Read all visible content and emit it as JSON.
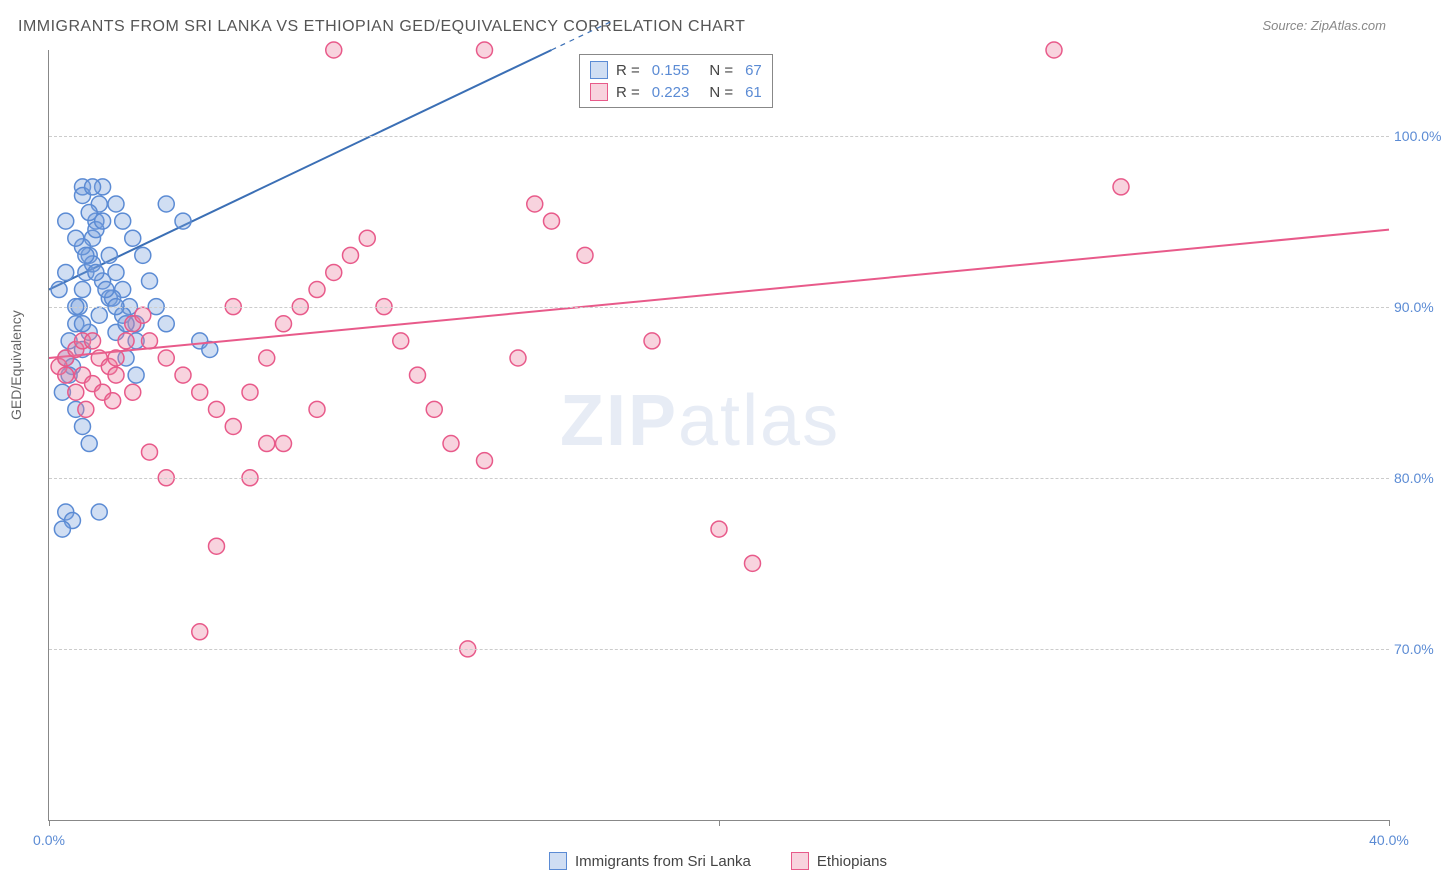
{
  "title": "IMMIGRANTS FROM SRI LANKA VS ETHIOPIAN GED/EQUIVALENCY CORRELATION CHART",
  "source_prefix": "Source: ",
  "source": "ZipAtlas.com",
  "ylabel": "GED/Equivalency",
  "watermark_bold": "ZIP",
  "watermark_light": "atlas",
  "chart": {
    "type": "scatter",
    "xlim": [
      0,
      40
    ],
    "ylim": [
      60,
      105
    ],
    "x_ticks": [
      0,
      20,
      40
    ],
    "x_tick_labels": [
      "0.0%",
      "",
      "40.0%"
    ],
    "x_tick_label_show": [
      true,
      false,
      true
    ],
    "y_ticks": [
      70,
      80,
      90,
      100
    ],
    "y_tick_labels": [
      "70.0%",
      "80.0%",
      "90.0%",
      "100.0%"
    ],
    "background_color": "#ffffff",
    "grid_color": "#cccccc",
    "axis_color": "#888888",
    "marker_radius": 8,
    "marker_stroke_width": 1.5,
    "series": [
      {
        "name": "Immigrants from Sri Lanka",
        "fill": "rgba(120,160,220,0.35)",
        "stroke": "#5b8bd4",
        "R": "0.155",
        "N": "67",
        "trend": {
          "x1": 0,
          "y1": 91,
          "x2": 15,
          "y2": 105,
          "dash_extend": true,
          "color": "#3b6fb5",
          "width": 2
        },
        "points": [
          [
            0.6,
            88
          ],
          [
            0.8,
            89
          ],
          [
            0.9,
            90
          ],
          [
            1.0,
            91
          ],
          [
            1.1,
            92
          ],
          [
            1.2,
            93
          ],
          [
            1.3,
            94
          ],
          [
            1.4,
            95
          ],
          [
            1.5,
            96
          ],
          [
            1.6,
            97
          ],
          [
            1.0,
            97
          ],
          [
            1.2,
            95.5
          ],
          [
            1.4,
            94.5
          ],
          [
            1.8,
            93
          ],
          [
            2.0,
            92
          ],
          [
            2.2,
            91
          ],
          [
            2.4,
            90
          ],
          [
            2.6,
            89
          ],
          [
            0.5,
            87
          ],
          [
            0.7,
            86.5
          ],
          [
            1.0,
            87.5
          ],
          [
            1.2,
            88.5
          ],
          [
            1.5,
            89.5
          ],
          [
            1.8,
            90.5
          ],
          [
            2.0,
            96
          ],
          [
            2.2,
            95
          ],
          [
            2.5,
            94
          ],
          [
            2.8,
            93
          ],
          [
            3.0,
            91.5
          ],
          [
            3.2,
            90
          ],
          [
            3.5,
            89
          ],
          [
            0.4,
            85
          ],
          [
            0.6,
            86
          ],
          [
            0.8,
            84
          ],
          [
            1.0,
            83
          ],
          [
            1.2,
            82
          ],
          [
            0.5,
            78
          ],
          [
            0.7,
            77.5
          ],
          [
            0.4,
            77
          ],
          [
            1.5,
            78
          ],
          [
            3.5,
            96
          ],
          [
            4.0,
            95
          ],
          [
            4.5,
            88
          ],
          [
            4.8,
            87.5
          ],
          [
            2.0,
            88.5
          ],
          [
            2.3,
            87
          ],
          [
            2.6,
            86
          ],
          [
            1.0,
            96.5
          ],
          [
            1.3,
            97
          ],
          [
            1.6,
            95
          ],
          [
            1.0,
            93.5
          ],
          [
            1.3,
            92.5
          ],
          [
            1.6,
            91.5
          ],
          [
            1.9,
            90.5
          ],
          [
            2.2,
            89.5
          ],
          [
            0.5,
            95
          ],
          [
            0.8,
            94
          ],
          [
            1.1,
            93
          ],
          [
            1.4,
            92
          ],
          [
            1.7,
            91
          ],
          [
            2.0,
            90
          ],
          [
            2.3,
            89
          ],
          [
            2.6,
            88
          ],
          [
            0.3,
            91
          ],
          [
            0.5,
            92
          ],
          [
            0.8,
            90
          ],
          [
            1.0,
            89
          ]
        ]
      },
      {
        "name": "Ethiopians",
        "fill": "rgba(235,130,160,0.35)",
        "stroke": "#e85a8a",
        "R": "0.223",
        "N": "61",
        "trend": {
          "x1": 0,
          "y1": 87,
          "x2": 40,
          "y2": 94.5,
          "dash_extend": false,
          "color": "#e85a8a",
          "width": 2
        },
        "points": [
          [
            0.3,
            86.5
          ],
          [
            0.5,
            87
          ],
          [
            0.8,
            87.5
          ],
          [
            1.0,
            88
          ],
          [
            1.3,
            88
          ],
          [
            1.5,
            87
          ],
          [
            1.8,
            86.5
          ],
          [
            2.0,
            87
          ],
          [
            2.3,
            88
          ],
          [
            2.5,
            89
          ],
          [
            2.8,
            89.5
          ],
          [
            3.0,
            88
          ],
          [
            3.5,
            87
          ],
          [
            4.0,
            86
          ],
          [
            4.5,
            85
          ],
          [
            5.0,
            84
          ],
          [
            5.5,
            83
          ],
          [
            6.0,
            85
          ],
          [
            6.5,
            87
          ],
          [
            7.0,
            89
          ],
          [
            7.5,
            90
          ],
          [
            8.0,
            91
          ],
          [
            8.5,
            92
          ],
          [
            9.0,
            93
          ],
          [
            9.5,
            94
          ],
          [
            10.0,
            90
          ],
          [
            10.5,
            88
          ],
          [
            11.0,
            86
          ],
          [
            11.5,
            84
          ],
          [
            12.0,
            82
          ],
          [
            13.0,
            81
          ],
          [
            14.0,
            87
          ],
          [
            15.0,
            95
          ],
          [
            16.0,
            93
          ],
          [
            18.0,
            88
          ],
          [
            20.0,
            77
          ],
          [
            21.0,
            75
          ],
          [
            12.5,
            70
          ],
          [
            4.5,
            71
          ],
          [
            5.0,
            76
          ],
          [
            6.0,
            80
          ],
          [
            7.0,
            82
          ],
          [
            8.0,
            84
          ],
          [
            8.5,
            105
          ],
          [
            30.0,
            105
          ],
          [
            32.0,
            97
          ],
          [
            13.0,
            105
          ],
          [
            14.5,
            96
          ],
          [
            3.5,
            80
          ],
          [
            3.0,
            81.5
          ],
          [
            2.0,
            86
          ],
          [
            2.5,
            85
          ],
          [
            1.0,
            86
          ],
          [
            1.3,
            85.5
          ],
          [
            1.6,
            85
          ],
          [
            1.9,
            84.5
          ],
          [
            0.5,
            86
          ],
          [
            0.8,
            85
          ],
          [
            1.1,
            84
          ],
          [
            5.5,
            90
          ],
          [
            6.5,
            82
          ]
        ]
      }
    ]
  },
  "legend_bottom": [
    {
      "label": "Immigrants from Sri Lanka",
      "fill": "rgba(120,160,220,0.35)",
      "stroke": "#5b8bd4"
    },
    {
      "label": "Ethiopians",
      "fill": "rgba(235,130,160,0.35)",
      "stroke": "#e85a8a"
    }
  ],
  "legend_top_labels": {
    "R": "R =",
    "N": "N ="
  }
}
